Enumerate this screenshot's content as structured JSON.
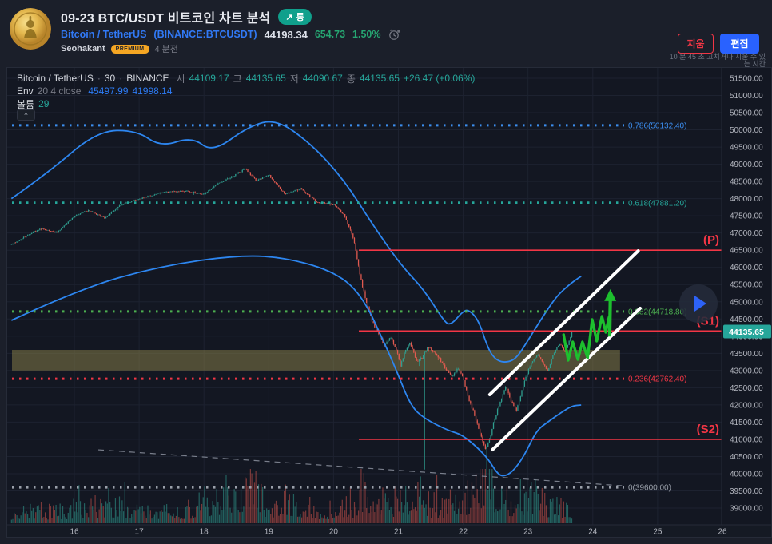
{
  "header": {
    "title": "09-23 BTC/USDT 비트코인 차트 분석",
    "badge_label": "롱",
    "symbol": "Bitcoin / TetherUS",
    "symbol_paren": "(BINANCE:BTCUSDT)",
    "price": "44198.34",
    "change": "654.73",
    "change_pct": "1.50%",
    "author": "Seohakant",
    "author_badge": "PREMIUM",
    "posted_ago": "4 분전",
    "delete_label": "지움",
    "edit_label": "편집",
    "edit_timer_line1": "10 분 45 초 고치거나 지울 수 있",
    "edit_timer_line2": "는 시간"
  },
  "icons": {
    "arrow_up_right": "↗",
    "collapse": "^",
    "play": "play-triangle"
  },
  "legend": {
    "symbol": "Bitcoin / TetherUS",
    "sep1": "·",
    "interval": "30",
    "sep2": "·",
    "exchange": "BINANCE",
    "o_label": "시",
    "o": "44109.17",
    "h_label": "고",
    "h": "44135.65",
    "l_label": "저",
    "l": "44090.67",
    "c_label": "종",
    "c": "44135.65",
    "change": "+26.47 (+0.06%)",
    "env_name": "Env",
    "env_params": "20 4 close",
    "env_upper": "45497.99",
    "env_lower": "41998.14",
    "vol_name": "볼륨",
    "vol_value": "29"
  },
  "colors": {
    "accent_blue": "#2962ff",
    "link_blue": "#3179f5",
    "green": "#26a672",
    "red": "#f23645",
    "badge_long": "#10a08c",
    "premium_orange": "#f5a623",
    "up": "#2f9e8f",
    "down": "#e25a50",
    "vol_up": "rgba(50,158,145,0.55)",
    "vol_down": "rgba(226,90,80,0.5)",
    "envelope": "#2d86f0",
    "channel": "#ffffff",
    "zigzag": "#1dbf2e",
    "tag_bg": "#26a69a",
    "axis_text": "#b2b5be",
    "grid": "#1d2230",
    "pane_bg": "#131722",
    "page_bg": "#1b1f2a"
  },
  "chart_data": {
    "type": "candlestick",
    "title": "Bitcoin / TetherUS 30m with Envelope(20,4) and volume",
    "interval": "30m",
    "start_day": 15.03,
    "end_day": 23.6875,
    "last_price": 44135.65,
    "x_axis": {
      "unit": "day of September",
      "ticks": [
        16,
        17,
        18,
        19,
        20,
        21,
        22,
        23,
        24,
        25,
        26
      ]
    },
    "y_axis": {
      "min": 39000,
      "max": 51500,
      "tick_step": 500,
      "format": "0.00"
    },
    "price_path": [
      [
        15.03,
        46670
      ],
      [
        15.24,
        46900
      ],
      [
        15.48,
        47130
      ],
      [
        15.73,
        47015
      ],
      [
        16.0,
        47480
      ],
      [
        16.22,
        47665
      ],
      [
        16.47,
        47433
      ],
      [
        16.72,
        47828
      ],
      [
        17.0,
        47990
      ],
      [
        17.33,
        48176
      ],
      [
        17.7,
        48222
      ],
      [
        18.0,
        48130
      ],
      [
        18.2,
        48410
      ],
      [
        18.44,
        48640
      ],
      [
        18.63,
        48875
      ],
      [
        18.81,
        48525
      ],
      [
        19.0,
        48690
      ],
      [
        19.25,
        48130
      ],
      [
        19.49,
        48293
      ],
      [
        19.74,
        47900
      ],
      [
        20.0,
        47830
      ],
      [
        20.16,
        47530
      ],
      [
        20.31,
        46830
      ],
      [
        20.41,
        45740
      ],
      [
        20.51,
        44970
      ],
      [
        20.6,
        44410
      ],
      [
        20.69,
        44090
      ],
      [
        20.78,
        43715
      ],
      [
        20.88,
        43995
      ],
      [
        20.97,
        43600
      ],
      [
        21.03,
        43135
      ],
      [
        21.09,
        43485
      ],
      [
        21.18,
        43830
      ],
      [
        21.28,
        43253
      ],
      [
        21.37,
        43370
      ],
      [
        21.46,
        43715
      ],
      [
        21.55,
        43530
      ],
      [
        21.65,
        43300
      ],
      [
        21.74,
        43020
      ],
      [
        21.83,
        42785
      ],
      [
        21.92,
        43065
      ],
      [
        22.0,
        42785
      ],
      [
        22.08,
        42205
      ],
      [
        22.17,
        41740
      ],
      [
        22.26,
        41160
      ],
      [
        22.35,
        40695
      ],
      [
        22.41,
        41020
      ],
      [
        22.49,
        41625
      ],
      [
        22.57,
        42090
      ],
      [
        22.66,
        42555
      ],
      [
        22.73,
        42135
      ],
      [
        22.82,
        41857
      ],
      [
        22.91,
        42438
      ],
      [
        22.98,
        42903
      ],
      [
        23.07,
        43250
      ],
      [
        23.15,
        43485
      ],
      [
        23.23,
        43205
      ],
      [
        23.31,
        42973
      ],
      [
        23.37,
        43368
      ],
      [
        23.44,
        43670
      ],
      [
        23.5,
        43763
      ],
      [
        23.57,
        43530
      ],
      [
        23.65,
        43948
      ],
      [
        23.6875,
        44135.65
      ]
    ],
    "envelope_upper": [
      [
        15.03,
        48000
      ],
      [
        15.6,
        48760
      ],
      [
        16.35,
        49970
      ],
      [
        16.96,
        49990
      ],
      [
        17.33,
        49500
      ],
      [
        17.82,
        49800
      ],
      [
        18.13,
        49340
      ],
      [
        18.69,
        50106
      ],
      [
        19.12,
        50315
      ],
      [
        19.67,
        49570
      ],
      [
        20.17,
        48525
      ],
      [
        20.6,
        47250
      ],
      [
        21.03,
        46087
      ],
      [
        21.4,
        45343
      ],
      [
        21.71,
        44414
      ],
      [
        21.81,
        44320
      ],
      [
        21.98,
        44693
      ],
      [
        22.08,
        44785
      ],
      [
        22.24,
        44460
      ],
      [
        22.39,
        43600
      ],
      [
        22.51,
        43297
      ],
      [
        22.66,
        43228
      ],
      [
        22.82,
        43344
      ],
      [
        23.0,
        43878
      ],
      [
        23.23,
        44575
      ],
      [
        23.44,
        45156
      ],
      [
        23.6,
        45435
      ],
      [
        23.72,
        45620
      ],
      [
        23.82,
        45740
      ]
    ],
    "envelope_lower": [
      [
        15.03,
        44460
      ],
      [
        16.1,
        45390
      ],
      [
        17.33,
        46040
      ],
      [
        18.56,
        46365
      ],
      [
        19.3,
        46272
      ],
      [
        20.04,
        45854
      ],
      [
        20.45,
        45157
      ],
      [
        20.81,
        43693
      ],
      [
        20.97,
        42996
      ],
      [
        21.19,
        41973
      ],
      [
        21.4,
        41602
      ],
      [
        21.77,
        41253
      ],
      [
        21.98,
        41137
      ],
      [
        22.23,
        40742
      ],
      [
        22.39,
        40417
      ],
      [
        22.51,
        40045
      ],
      [
        22.61,
        39906
      ],
      [
        22.76,
        40045
      ],
      [
        22.94,
        40510
      ],
      [
        23.13,
        41253
      ],
      [
        23.31,
        41509
      ],
      [
        23.5,
        41764
      ],
      [
        23.68,
        41973
      ],
      [
        23.82,
        41998
      ]
    ],
    "volume_profile": [
      [
        15.03,
        16
      ],
      [
        15.5,
        20
      ],
      [
        16.0,
        24
      ],
      [
        16.55,
        34
      ],
      [
        16.8,
        26
      ],
      [
        17.2,
        18
      ],
      [
        17.8,
        26
      ],
      [
        18.1,
        40
      ],
      [
        18.55,
        62
      ],
      [
        18.65,
        68
      ],
      [
        19.0,
        30
      ],
      [
        19.3,
        42
      ],
      [
        19.8,
        20
      ],
      [
        20.3,
        30
      ],
      [
        20.45,
        62
      ],
      [
        20.62,
        55
      ],
      [
        20.9,
        35
      ],
      [
        21.28,
        52
      ],
      [
        21.5,
        30
      ],
      [
        21.9,
        34
      ],
      [
        22.3,
        66
      ],
      [
        22.5,
        40
      ],
      [
        22.75,
        35
      ],
      [
        23.05,
        52
      ],
      [
        23.3,
        34
      ],
      [
        23.55,
        28
      ],
      [
        23.6875,
        26
      ]
    ],
    "fib_levels": [
      {
        "label": "0.786(50132.40)",
        "price": 50132.4,
        "color": "#3c8ef0"
      },
      {
        "label": "0.618(47881.20)",
        "price": 47881.2,
        "color": "#26a69a"
      },
      {
        "label": "0.382(44718.80)",
        "price": 44718.8,
        "color": "#4caf50"
      },
      {
        "label": "0.236(42762.40)",
        "price": 42762.4,
        "color": "#f23645"
      },
      {
        "label": "0(39600.00)",
        "price": 39600.0,
        "color": "#9aa0aa"
      }
    ],
    "pivot_lines": [
      {
        "label": "(P)",
        "price": 46500,
        "from_day": 20.39
      },
      {
        "label": "(S1)",
        "price": 44150,
        "from_day": 20.39
      },
      {
        "label": "(S2)",
        "price": 41000,
        "from_day": 20.39
      }
    ],
    "zone": {
      "price_from": 43000,
      "price_to": 43600,
      "day_to": 24.42,
      "color": "rgba(141,132,74,0.5)"
    },
    "channel": [
      [
        [
          22.41,
          42300
        ],
        [
          24.7,
          46480
        ]
      ],
      [
        [
          22.45,
          40695
        ],
        [
          24.73,
          44810
        ]
      ]
    ],
    "trend_dashed": [
      [
        16.37,
        40695
      ],
      [
        24.45,
        39650
      ]
    ],
    "zigzag": [
      [
        23.55,
        44042
      ],
      [
        23.62,
        43299
      ],
      [
        23.69,
        43833
      ],
      [
        23.77,
        43322
      ],
      [
        23.84,
        43833
      ],
      [
        23.92,
        43368
      ],
      [
        23.99,
        44483
      ],
      [
        24.06,
        43856
      ],
      [
        24.14,
        44576
      ],
      [
        24.2,
        44112
      ],
      [
        24.25,
        44553
      ]
    ],
    "arrow": {
      "from": [
        24.26,
        43990
      ],
      "to": [
        24.27,
        45300
      ]
    }
  }
}
